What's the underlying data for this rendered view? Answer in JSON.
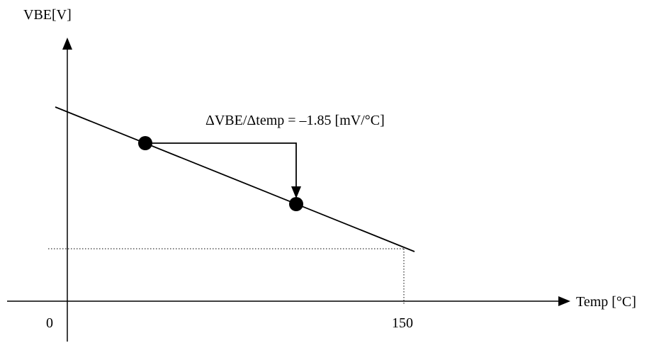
{
  "diagram": {
    "y_axis_label": "VBE[V]",
    "x_axis_label": "Temp [°C]",
    "origin_tick": "0",
    "x_tick_150": "150",
    "slope_annotation": "ΔVBE/Δtemp = –1.85 [mV/°C]"
  },
  "colors": {
    "ink": "#000000",
    "background": "#ffffff"
  }
}
